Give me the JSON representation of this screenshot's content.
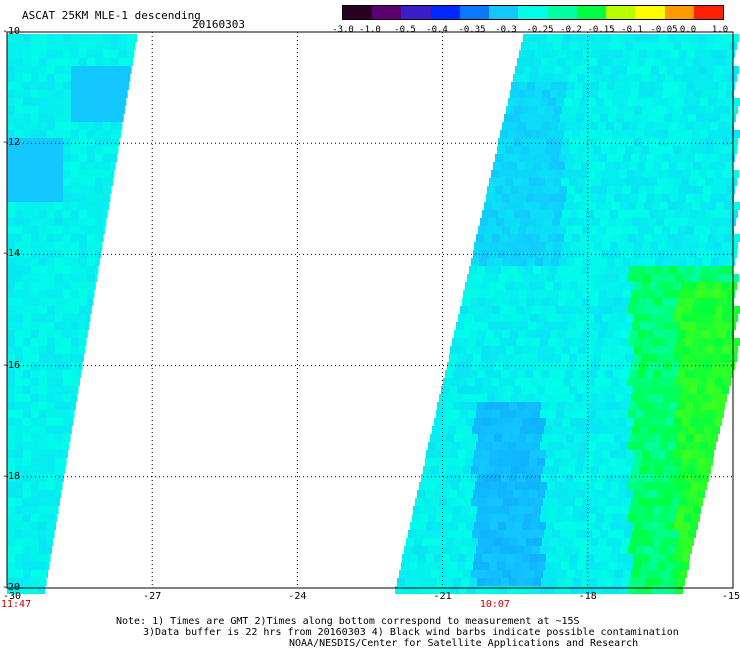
{
  "header": {
    "title": "ASCAT 25KM MLE-1 descending",
    "date": "20160303"
  },
  "colorbar": {
    "labels": [
      "-3.0",
      "-1.0",
      "-0.5",
      "-0.4",
      "-0.35",
      "-0.3",
      "-0.25",
      "-0.2",
      "-0.15",
      "-0.1",
      "-0.05",
      "0.0",
      "1.0"
    ],
    "colors": [
      "#2a0022",
      "#5a0070",
      "#3a1cc8",
      "#0028ff",
      "#0a78ff",
      "#12c8ff",
      "#00ffe8",
      "#00ffa0",
      "#00ff40",
      "#b8ff00",
      "#ffff00",
      "#ff9a00",
      "#ff2000"
    ]
  },
  "axes": {
    "x_ticks": [
      "-30",
      "-27",
      "-24",
      "-21",
      "-18",
      "-15"
    ],
    "y_ticks": [
      "-10",
      "-12",
      "-14",
      "-16",
      "-18",
      "-20"
    ],
    "lon_range": [
      -30,
      -15
    ],
    "lat_range": [
      -20,
      -10
    ],
    "grid": true
  },
  "pass_times": [
    {
      "label": "11:47",
      "lon": -30
    },
    {
      "label": "10:07",
      "lon": -19.9
    }
  ],
  "notes": {
    "line1": "Note: 1) Times are GMT 2)Times along bottom correspond to measurement at ~15S",
    "line2": "3)Data buffer is 22 hrs from 20160303 4) Black wind barbs indicate possible contamination",
    "line3": "NOAA/NESDIS/Center for Satellite Applications and Research"
  }
}
